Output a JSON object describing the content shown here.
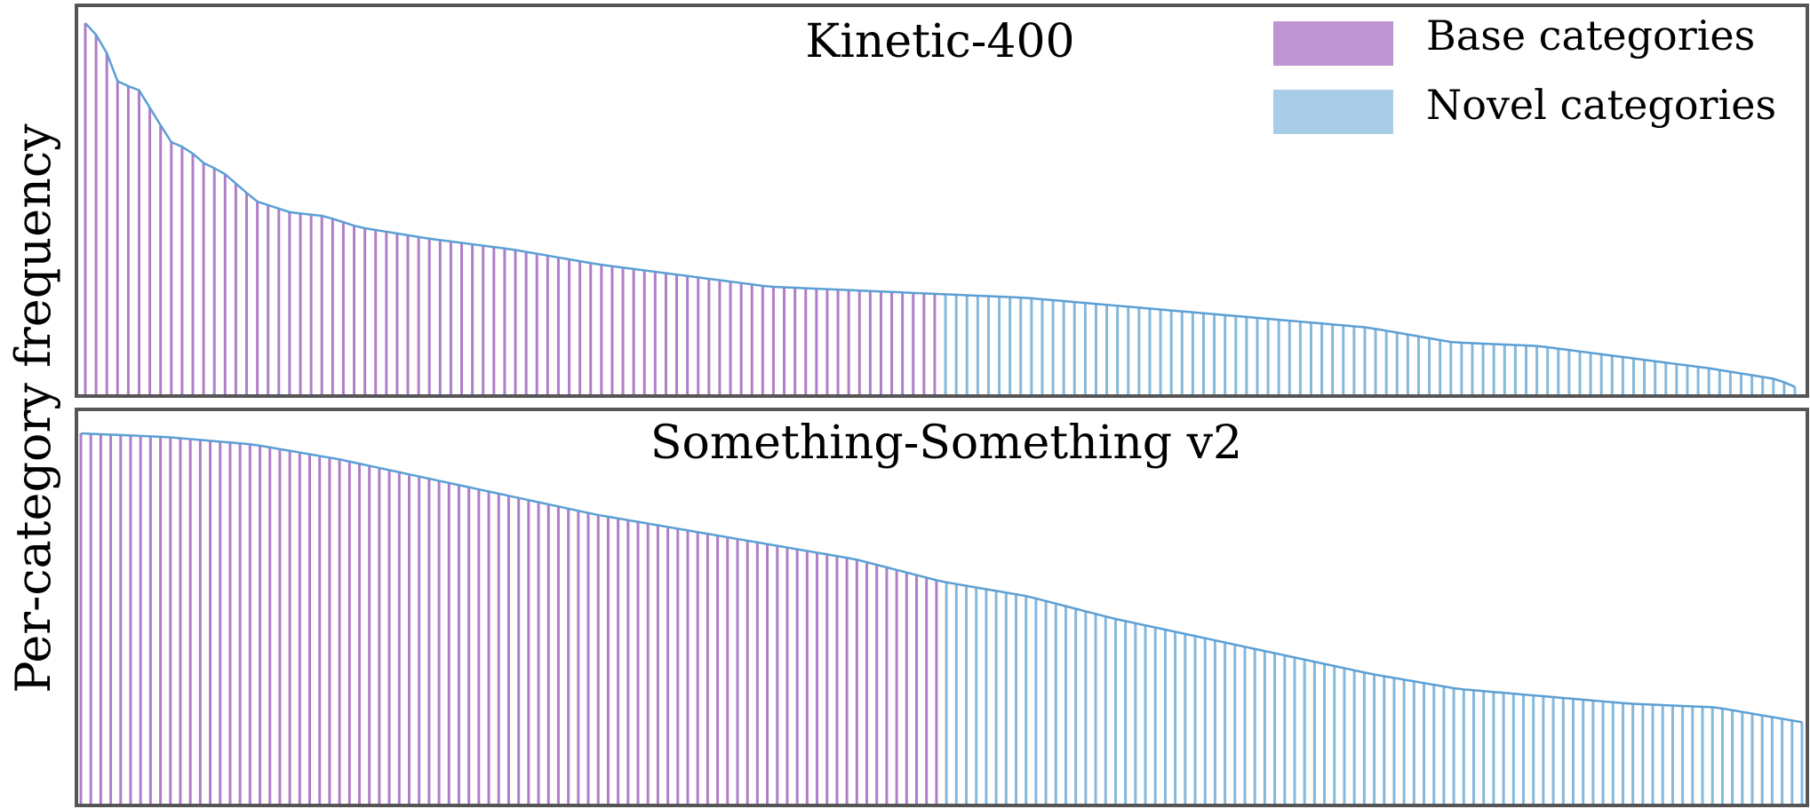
{
  "chart_data": {
    "type": "bar",
    "ylabel": "Per-category frequency",
    "legend": {
      "placement": "top-right",
      "entries": [
        {
          "name": "Base categories",
          "color": "#bf95d2"
        },
        {
          "name": "Novel categories",
          "color": "#a9cde6"
        }
      ]
    },
    "outline_color": "#5b9fd4",
    "panels": [
      {
        "title": "Kinetic-400",
        "num_categories": 160,
        "base_count": 80,
        "ylim": [
          0,
          1
        ],
        "grid": false,
        "profile_x": [
          0,
          0.01,
          0.02,
          0.03,
          0.05,
          0.06,
          0.07,
          0.08,
          0.1,
          0.12,
          0.14,
          0.16,
          0.2,
          0.25,
          0.3,
          0.35,
          0.4,
          0.45,
          0.5,
          0.55,
          0.6,
          0.65,
          0.7,
          0.75,
          0.8,
          0.85,
          0.9,
          0.95,
          0.99,
          1.0
        ],
        "profile_y": [
          1.0,
          0.95,
          0.83,
          0.83,
          0.68,
          0.66,
          0.62,
          0.6,
          0.52,
          0.49,
          0.48,
          0.45,
          0.42,
          0.39,
          0.35,
          0.32,
          0.29,
          0.28,
          0.27,
          0.26,
          0.24,
          0.22,
          0.2,
          0.18,
          0.14,
          0.13,
          0.1,
          0.07,
          0.04,
          0.02
        ]
      },
      {
        "title": "Something-Something v2",
        "num_categories": 174,
        "base_count": 87,
        "ylim": [
          0,
          1
        ],
        "grid": false,
        "profile_x": [
          0,
          0.05,
          0.1,
          0.15,
          0.2,
          0.25,
          0.3,
          0.35,
          0.4,
          0.45,
          0.5,
          0.55,
          0.6,
          0.65,
          0.7,
          0.75,
          0.8,
          0.85,
          0.9,
          0.95,
          1.0
        ],
        "profile_y": [
          1.0,
          0.99,
          0.97,
          0.93,
          0.88,
          0.83,
          0.78,
          0.74,
          0.7,
          0.66,
          0.6,
          0.56,
          0.5,
          0.45,
          0.4,
          0.35,
          0.31,
          0.29,
          0.27,
          0.26,
          0.22
        ]
      }
    ]
  }
}
